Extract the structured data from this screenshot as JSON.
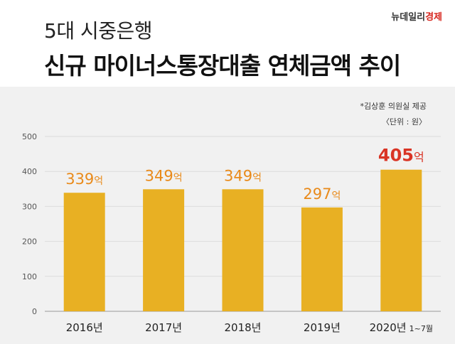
{
  "header": {
    "subtitle": "5대 시중은행",
    "title": "신규 마이너스통장대출 연체금액 추이",
    "brand_part1": "뉴데일리",
    "brand_part2": "경제"
  },
  "source": "*김상훈 의원실 제공",
  "unit": "〈단위 : 원〉",
  "colors": {
    "bar": "#e8b023",
    "label_default": "#e98a1a",
    "label_highlight": "#d93425",
    "panel_bg": "#f1f1f1",
    "grid": "#dcdcdc",
    "axis": "#999999"
  },
  "chart_data": {
    "type": "bar",
    "categories": [
      "2016년",
      "2017년",
      "2018년",
      "2019년",
      "2020년"
    ],
    "category_notes": [
      "",
      "",
      "",
      "",
      "1~7월"
    ],
    "values": [
      339,
      349,
      349,
      297,
      405
    ],
    "value_labels": [
      "339",
      "349",
      "349",
      "297",
      "405"
    ],
    "value_suffix": "억",
    "highlight_index": 4,
    "ylim": [
      0,
      500
    ],
    "yticks": [
      0,
      100,
      200,
      300,
      400,
      500
    ],
    "grid": true,
    "title": "",
    "xlabel": "",
    "ylabel": ""
  }
}
